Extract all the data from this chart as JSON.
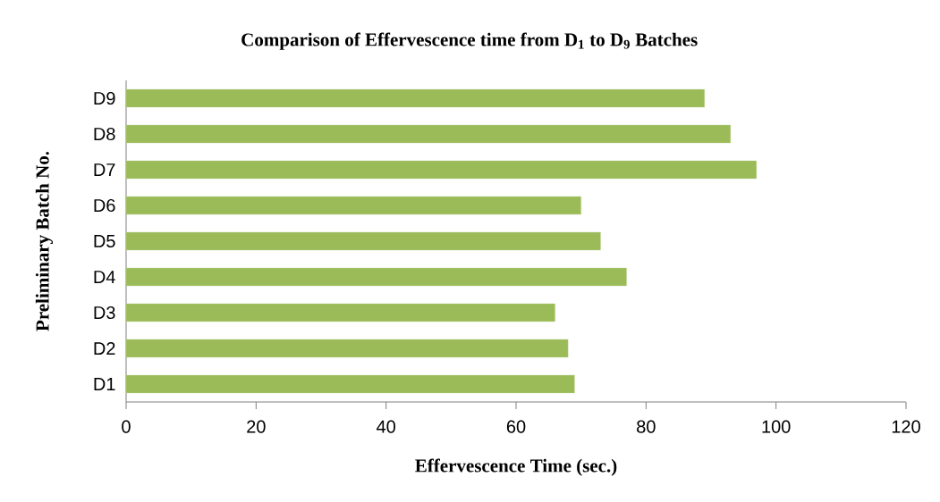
{
  "chart_data": {
    "type": "bar",
    "orientation": "horizontal",
    "title": "Comparison of Effervescence time from D$_{1}$ to D$_{9}$ Batches",
    "xlabel": "Effervescence Time (sec.)",
    "ylabel": "Preliminary Batch No.",
    "categories": [
      "D9",
      "D8",
      "D7",
      "D6",
      "D5",
      "D4",
      "D3",
      "D2",
      "D1"
    ],
    "values": [
      89,
      93,
      97,
      70,
      73,
      77,
      66,
      68,
      69
    ],
    "color": "#9bbb59",
    "xlim": [
      0,
      120
    ],
    "xticks": [
      0,
      20,
      40,
      60,
      80,
      100,
      120
    ],
    "grid": false
  }
}
